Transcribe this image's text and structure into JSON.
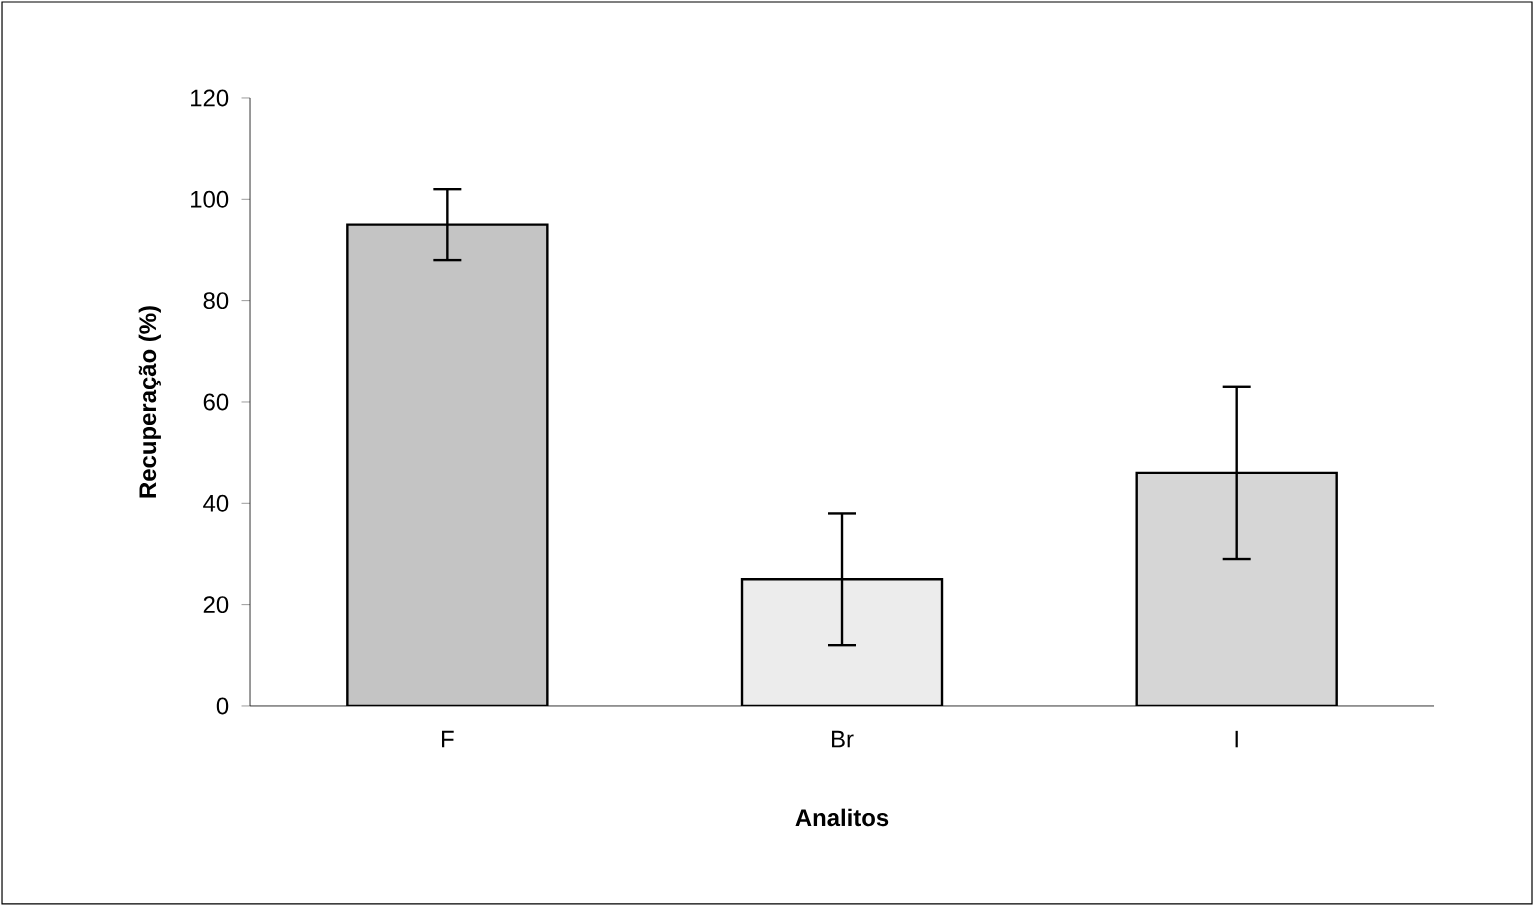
{
  "chart_data": {
    "type": "bar",
    "xlabel": "Analitos",
    "ylabel": "Recuperação (%)",
    "categories": [
      "F",
      "Br",
      "I"
    ],
    "values": [
      95,
      25,
      46
    ],
    "errors": [
      7,
      13,
      17
    ],
    "colors": [
      "#c4c4c4",
      "#ececec",
      "#d6d6d6"
    ],
    "ylim": [
      0,
      120
    ],
    "yticks": [
      0,
      20,
      40,
      60,
      80,
      100,
      120
    ],
    "grid": false
  }
}
